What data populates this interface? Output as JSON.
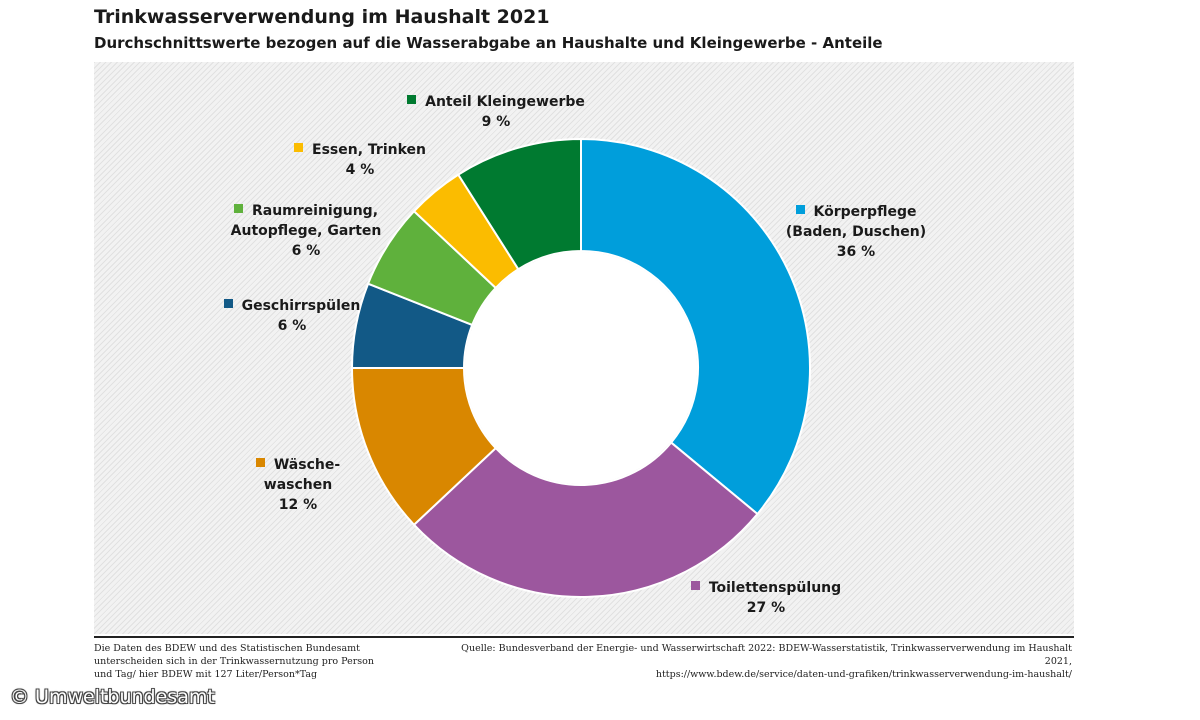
{
  "header": {
    "title": "Trinkwasserverwendung im Haushalt 2021",
    "subtitle": "Durchschnittswerte bezogen auf die Wasserabgabe an Haushalte und Kleingewerbe - Anteile"
  },
  "chart_data": {
    "type": "pie",
    "donut": true,
    "title": "Trinkwasserverwendung im Haushalt 2021",
    "subtitle": "Durchschnittswerte bezogen auf die Wasserabgabe an Haushalte und Kleingewerbe - Anteile",
    "unit": "%",
    "grid": false,
    "slices": [
      {
        "name": "Körperpflege\n(Baden, Duschen)",
        "value": 36,
        "label": "36 %",
        "color": "#009edb"
      },
      {
        "name": "Toilettenspülung",
        "value": 27,
        "label": "27 %",
        "color": "#9c579e"
      },
      {
        "name": "Wäsche-\nwaschen",
        "value": 12,
        "label": "12 %",
        "color": "#d98700"
      },
      {
        "name": "Geschirrspülen",
        "value": 6,
        "label": "6 %",
        "color": "#125986"
      },
      {
        "name": "Raumreinigung,\nAutopflege, Garten",
        "value": 6,
        "label": "6 %",
        "color": "#5fb13c"
      },
      {
        "name": "Essen, Trinken",
        "value": 4,
        "label": "4 %",
        "color": "#fbbc00"
      },
      {
        "name": "Anteil Kleingewerbe",
        "value": 9,
        "label": "9 %",
        "color": "#007a30"
      }
    ]
  },
  "footer": {
    "note": "Die Daten des BDEW und des Statistischen Bundesamt unterscheiden sich in der Trinkwassernutzung pro Person und Tag/ hier BDEW mit 127 Liter/Person*Tag",
    "source_line1": "Quelle: Bundesverband der Energie- und Wasserwirtschaft 2022: BDEW-Wasserstatistik, Trinkwasserverwendung im Haushalt 2021,",
    "source_line2": "https://www.bdew.de/service/daten-und-grafiken/trinkwasserverwendung-im-haushalt/",
    "copyright": "© Umweltbundesamt"
  }
}
